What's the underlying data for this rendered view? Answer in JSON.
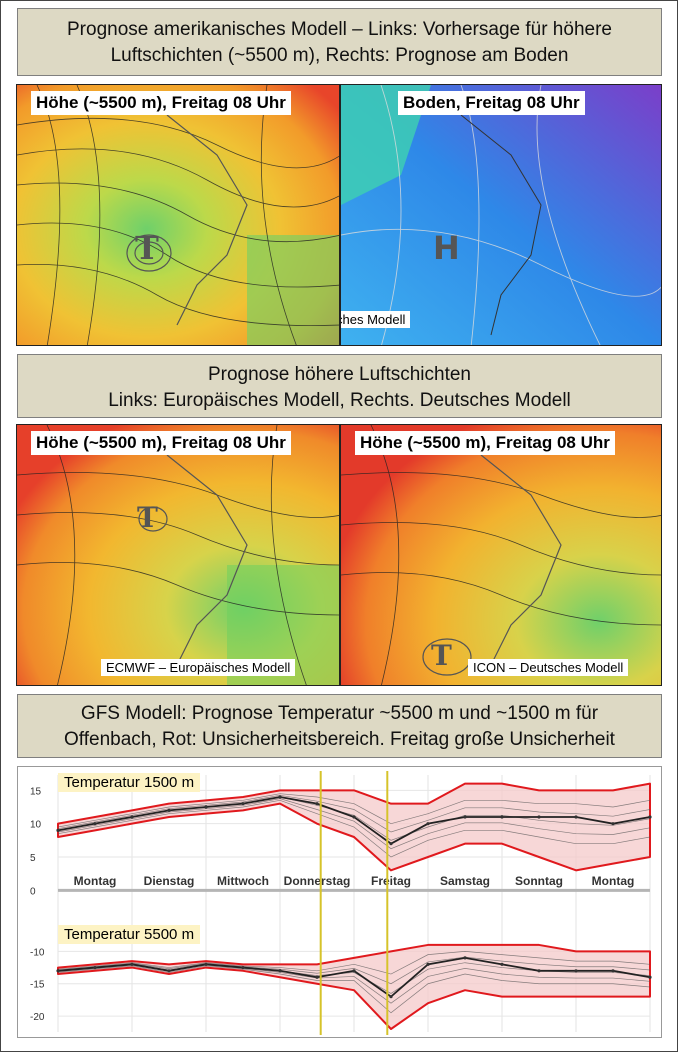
{
  "banners": {
    "top_line1": "Prognose amerikanisches Modell – Links: Vorhersage für höhere",
    "top_line2": "Luftschichten (~5500 m), Rechts: Prognose am Boden",
    "mid_line1": "Prognose höhere Luftschichten",
    "mid_line2": "Links: Europäisches Modell, Rechts. Deutsches Modell",
    "bottom_line1": "GFS Modell: Prognose Temperatur ~5500 m und ~1500 m für",
    "bottom_line2": "Offenbach, Rot: Unsicherheitsbereich. Freitag große Unsicherheit"
  },
  "maps": {
    "gfs_upper": {
      "label": "Höhe (~5500 m), Freitag 08 Uhr",
      "symbol": "T"
    },
    "gfs_surface": {
      "label": "Boden, Freitag 08 Uhr",
      "symbol": "H"
    },
    "gfs_caption": "GFS – amerikanisches Modell",
    "ecmwf": {
      "label": "Höhe (~5500 m), Freitag 08 Uhr",
      "caption": "ECMWF – Europäisches Modell",
      "symbol": "T"
    },
    "icon": {
      "label": "Höhe (~5500 m), Freitag 08 Uhr",
      "caption": "ICON – Deutsches Modell",
      "symbol": "T"
    }
  },
  "colors": {
    "uncertainty_band": "#f4c9c9",
    "uncertainty_border": "#e0191d",
    "friday_markers": "#d6c32a",
    "ensemble": "#555555"
  },
  "chart_data": {
    "type": "line",
    "days": [
      "Montag",
      "Dienstag",
      "Mittwoch",
      "Donnerstag",
      "Freitag",
      "Samstag",
      "Sonntag",
      "Montag"
    ],
    "x": [
      0,
      1,
      2,
      3,
      4,
      5,
      6,
      7,
      8,
      9,
      10,
      11,
      12,
      13,
      14,
      15,
      16
    ],
    "panels": [
      {
        "label": "Temperatur  1500 m",
        "yticks": [
          15,
          10,
          5,
          0
        ],
        "ylim": [
          -1,
          17
        ],
        "mean": [
          9,
          10,
          11,
          12,
          12.5,
          13,
          14,
          13,
          11,
          7,
          10,
          11,
          11,
          11,
          11,
          10,
          11
        ],
        "band_upper": [
          10,
          11,
          12,
          13,
          13.5,
          14,
          15,
          15,
          15,
          13,
          13,
          16,
          16,
          15,
          15,
          15,
          16
        ],
        "band_lower": [
          8,
          9,
          10,
          11,
          11.5,
          12,
          13,
          10,
          8,
          3,
          5,
          7,
          7,
          5,
          3,
          4,
          5
        ]
      },
      {
        "label": "Temperatur  5500 m",
        "yticks": [
          -10,
          -15,
          -20
        ],
        "ylim": [
          -22,
          -7
        ],
        "mean": [
          -13,
          -12.5,
          -12,
          -13,
          -12,
          -12.5,
          -13,
          -14,
          -13,
          -17,
          -12,
          -11,
          -12,
          -13,
          -13,
          -13,
          -14
        ],
        "band_upper": [
          -12.5,
          -12,
          -11.5,
          -12,
          -11.5,
          -12,
          -12,
          -12,
          -11,
          -10,
          -9,
          -9,
          -9,
          -9,
          -10,
          -10,
          -10
        ],
        "band_lower": [
          -13.5,
          -13,
          -12.5,
          -13.5,
          -12.5,
          -13,
          -14,
          -15,
          -16,
          -22,
          -18,
          -16,
          -17,
          -17,
          -17,
          -17,
          -17
        ]
      }
    ]
  }
}
